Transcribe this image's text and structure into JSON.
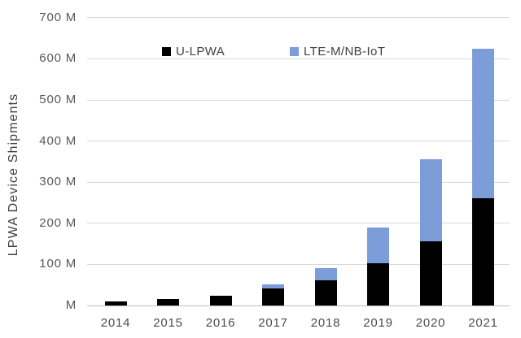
{
  "chart_data": {
    "type": "bar",
    "stacked": true,
    "title": "",
    "ylabel": "LPWA Device Shipments",
    "xlabel": "",
    "unit": "M (millions of devices)",
    "categories": [
      "2014",
      "2015",
      "2016",
      "2017",
      "2018",
      "2019",
      "2020",
      "2021"
    ],
    "series": [
      {
        "name": "U-LPWA",
        "color": "#000000",
        "values": [
          10,
          16,
          24,
          42,
          62,
          102,
          156,
          261
        ]
      },
      {
        "name": "LTE-M/NB-IoT",
        "color": "#7C9DD9",
        "values": [
          0,
          0,
          0,
          9,
          28,
          88,
          199,
          364
        ]
      }
    ],
    "stacked_totals": [
      10,
      16,
      24,
      51,
      90,
      190,
      355,
      625
    ],
    "ylim": [
      0,
      700
    ],
    "y_tick_interval": 100,
    "y_tick_labels": [
      "M",
      "100 M",
      "200 M",
      "300 M",
      "400 M",
      "500 M",
      "600 M",
      "700 M"
    ],
    "grid": true,
    "legend_position": "top-center-inside"
  },
  "colors": {
    "background": "#FFFFFF",
    "gridline": "#D9D9D9",
    "axis_line": "#BFBFBF",
    "y_tick_label": "#595959",
    "x_tick_label": "#4D4D4D",
    "axis_title": "#404040",
    "legend_text": "#404040",
    "series_u_lpwa": "#000000",
    "series_lte_m_nb_iot": "#7C9DD9"
  }
}
